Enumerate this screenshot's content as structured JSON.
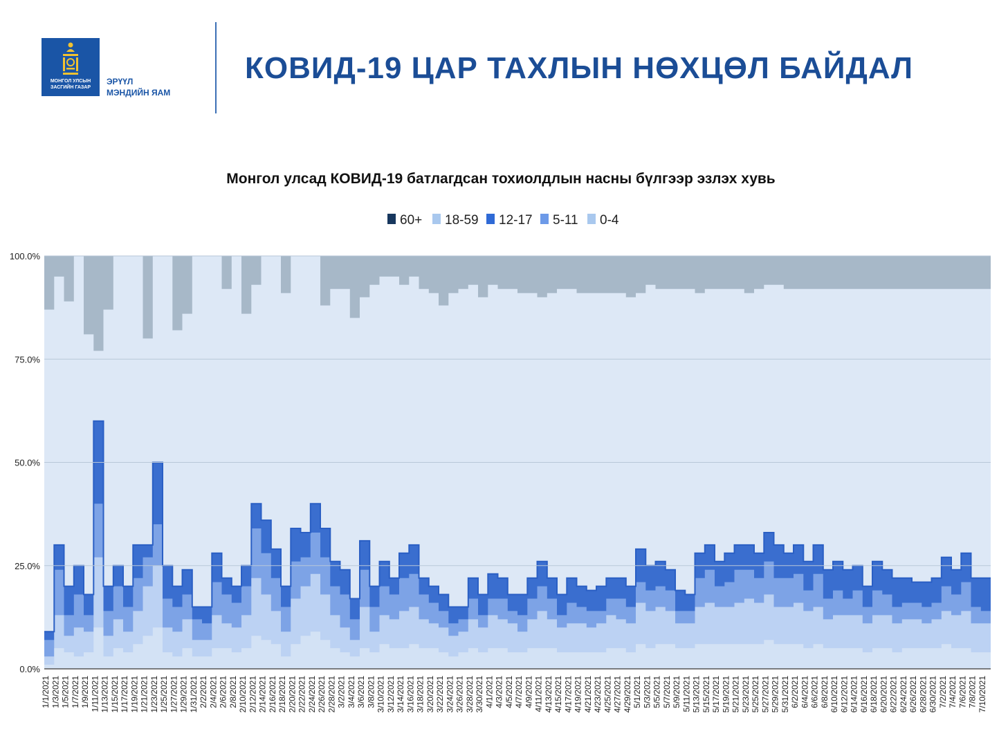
{
  "header": {
    "logo_line1": "МОНГОЛ УЛСЫН",
    "logo_line2": "ЗАСГИЙН ГАЗАР",
    "ministry_line1": "ЭРҮҮЛ",
    "ministry_line2": "МЭНДИЙН ЯАМ",
    "title": "КОВИД-19 ЦАР ТАХЛЫН НӨХЦӨЛ БАЙДАЛ"
  },
  "colors": {
    "brand_blue": "#1a55a6",
    "title_blue": "#1b4d96",
    "plot_bg": "#dfe9f5",
    "series_60plus": "#a7b8c8",
    "series_18_59": "#dde8f6",
    "series_12_17": "#3a6ecf",
    "series_5_11": "#7da3e6",
    "series_0_4": "#bcd2f3"
  },
  "chart_data": {
    "type": "area",
    "stacked": true,
    "percent": true,
    "title": "Монгол улсад КОВИД-19 батлагдсан тохиолдлын насны бүлгээр эзлэх хувь",
    "legend": [
      "60+",
      "18-59",
      "12-17",
      "5-11",
      "0-4"
    ],
    "legend_position": "top",
    "ylim": [
      0,
      100
    ],
    "y_ticks": [
      "0.0%",
      "25.0%",
      "50.0%",
      "75.0%",
      "100.0%"
    ],
    "grid": true,
    "x_start": "2021-01-01",
    "x_end": "2021-07-11",
    "x_ticks": [
      "1/1/2021",
      "1/3/2021",
      "1/5/2021",
      "1/7/2021",
      "1/9/2021",
      "1/11/2021",
      "1/13/2021",
      "1/15/2021",
      "1/17/2021",
      "1/19/2021",
      "1/21/2021",
      "1/23/2021",
      "1/25/2021",
      "1/27/2021",
      "1/29/2021",
      "1/31/2021",
      "2/2/2021",
      "2/4/2021",
      "2/6/2021",
      "2/8/2021",
      "2/10/2021",
      "2/12/2021",
      "2/14/2021",
      "2/16/2021",
      "2/18/2021",
      "2/20/2021",
      "2/22/2021",
      "2/24/2021",
      "2/26/2021",
      "2/28/2021",
      "3/2/2021",
      "3/4/2021",
      "3/6/2021",
      "3/8/2021",
      "3/10/2021",
      "3/12/2021",
      "3/14/2021",
      "3/16/2021",
      "3/18/2021",
      "3/20/2021",
      "3/22/2021",
      "3/24/2021",
      "3/26/2021",
      "3/28/2021",
      "3/30/2021",
      "4/1/2021",
      "4/3/2021",
      "4/5/2021",
      "4/7/2021",
      "4/9/2021",
      "4/11/2021",
      "4/13/2021",
      "4/15/2021",
      "4/17/2021",
      "4/19/2021",
      "4/21/2021",
      "4/23/2021",
      "4/25/2021",
      "4/27/2021",
      "4/29/2021",
      "5/1/2021",
      "5/3/2021",
      "5/5/2021",
      "5/7/2021",
      "5/9/2021",
      "5/11/2021",
      "5/13/2021",
      "5/15/2021",
      "5/17/2021",
      "5/19/2021",
      "5/21/2021",
      "5/23/2021",
      "5/25/2021",
      "5/27/2021",
      "5/29/2021",
      "5/31/2021",
      "6/2/2021",
      "6/4/2021",
      "6/6/2021",
      "6/8/2021",
      "6/10/2021",
      "6/12/2021",
      "6/14/2021",
      "6/16/2021",
      "6/18/2021",
      "6/20/2021",
      "6/22/2021",
      "6/24/2021",
      "6/26/2021",
      "6/28/2021",
      "6/30/2021",
      "7/2/2021",
      "7/4/2021",
      "7/6/2021",
      "7/8/2021",
      "7/10/2021"
    ],
    "x_sample_dates": [
      "1/1/2021",
      "1/3/2021",
      "1/5/2021",
      "1/7/2021",
      "1/9/2021",
      "1/11/2021",
      "1/13/2021",
      "1/15/2021",
      "1/17/2021",
      "1/19/2021",
      "1/21/2021",
      "1/23/2021",
      "1/25/2021",
      "1/27/2021",
      "1/29/2021",
      "1/31/2021",
      "2/2/2021",
      "2/4/2021",
      "2/6/2021",
      "2/8/2021",
      "2/10/2021",
      "2/12/2021",
      "2/14/2021",
      "2/16/2021",
      "2/18/2021",
      "2/20/2021",
      "2/22/2021",
      "2/24/2021",
      "2/26/2021",
      "2/28/2021",
      "3/2/2021",
      "3/4/2021",
      "3/6/2021",
      "3/8/2021",
      "3/10/2021",
      "3/12/2021",
      "3/14/2021",
      "3/16/2021",
      "3/18/2021",
      "3/20/2021",
      "3/22/2021",
      "3/24/2021",
      "3/26/2021",
      "3/28/2021",
      "3/30/2021",
      "4/1/2021",
      "4/3/2021",
      "4/5/2021",
      "4/7/2021",
      "4/9/2021",
      "4/11/2021",
      "4/13/2021",
      "4/15/2021",
      "4/17/2021",
      "4/19/2021",
      "4/21/2021",
      "4/23/2021",
      "4/25/2021",
      "4/27/2021",
      "4/29/2021",
      "5/1/2021",
      "5/3/2021",
      "5/5/2021",
      "5/7/2021",
      "5/9/2021",
      "5/11/2021",
      "5/13/2021",
      "5/15/2021",
      "5/17/2021",
      "5/19/2021",
      "5/21/2021",
      "5/23/2021",
      "5/25/2021",
      "5/27/2021",
      "5/29/2021",
      "5/31/2021",
      "6/2/2021",
      "6/4/2021",
      "6/6/2021",
      "6/8/2021",
      "6/10/2021",
      "6/12/2021",
      "6/14/2021",
      "6/16/2021",
      "6/18/2021",
      "6/20/2021",
      "6/22/2021",
      "6/24/2021",
      "6/26/2021",
      "6/28/2021",
      "6/30/2021",
      "7/2/2021",
      "7/4/2021",
      "7/6/2021",
      "7/8/2021",
      "7/10/2021"
    ],
    "cumulative_below_60plus": [
      87,
      95,
      89,
      100,
      81,
      77,
      87,
      100,
      100,
      100,
      80,
      100,
      100,
      82,
      86,
      100,
      100,
      100,
      92,
      100,
      86,
      93,
      100,
      100,
      91,
      100,
      100,
      100,
      88,
      92,
      92,
      85,
      90,
      93,
      95,
      95,
      93,
      95,
      92,
      91,
      88,
      91,
      92,
      93,
      90,
      93,
      92,
      92,
      91,
      91,
      90,
      91,
      92,
      92,
      91,
      91,
      91,
      91,
      91,
      90,
      91,
      93,
      92,
      92,
      92,
      92,
      91,
      92,
      92,
      92,
      92,
      91,
      92,
      93,
      93,
      92,
      92,
      92,
      92,
      92,
      92,
      92,
      92,
      92,
      92,
      92,
      92,
      92,
      92,
      92,
      92,
      92,
      92,
      92,
      92,
      92
    ],
    "cumulative_below_18_59": [
      9,
      30,
      20,
      25,
      18,
      60,
      20,
      25,
      20,
      30,
      30,
      50,
      25,
      20,
      24,
      15,
      15,
      28,
      22,
      20,
      25,
      40,
      36,
      29,
      20,
      34,
      33,
      40,
      34,
      26,
      24,
      17,
      31,
      20,
      26,
      22,
      28,
      30,
      22,
      20,
      18,
      15,
      15,
      22,
      18,
      23,
      22,
      18,
      18,
      22,
      26,
      22,
      18,
      22,
      20,
      19,
      20,
      22,
      22,
      20,
      29,
      25,
      26,
      24,
      19,
      18,
      28,
      30,
      26,
      28,
      30,
      30,
      28,
      33,
      30,
      28,
      30,
      26,
      30,
      24,
      26,
      24,
      25,
      20,
      26,
      24,
      22,
      22,
      21,
      21,
      22,
      27,
      24,
      28,
      22,
      22
    ],
    "cumulative_below_12_17": [
      7,
      24,
      13,
      18,
      13,
      40,
      14,
      20,
      15,
      22,
      27,
      35,
      17,
      15,
      18,
      12,
      11,
      21,
      18,
      16,
      20,
      34,
      28,
      22,
      15,
      26,
      27,
      33,
      27,
      20,
      18,
      12,
      24,
      15,
      20,
      18,
      22,
      23,
      18,
      16,
      14,
      11,
      12,
      17,
      13,
      17,
      17,
      14,
      13,
      17,
      20,
      17,
      13,
      16,
      15,
      14,
      14,
      17,
      17,
      15,
      21,
      19,
      20,
      19,
      14,
      14,
      22,
      24,
      20,
      21,
      24,
      24,
      22,
      26,
      22,
      22,
      23,
      19,
      23,
      17,
      19,
      17,
      19,
      15,
      19,
      18,
      15,
      16,
      16,
      15,
      16,
      20,
      18,
      21,
      15,
      14
    ],
    "cumulative_below_5_11": [
      3,
      13,
      8,
      10,
      9,
      27,
      8,
      12,
      9,
      14,
      20,
      25,
      10,
      9,
      12,
      7,
      7,
      13,
      11,
      10,
      13,
      22,
      18,
      14,
      9,
      17,
      20,
      23,
      18,
      13,
      10,
      7,
      15,
      9,
      13,
      12,
      14,
      15,
      12,
      11,
      10,
      8,
      9,
      12,
      10,
      13,
      12,
      11,
      9,
      12,
      14,
      12,
      10,
      11,
      11,
      10,
      11,
      13,
      12,
      11,
      16,
      14,
      15,
      14,
      11,
      11,
      15,
      16,
      15,
      15,
      16,
      17,
      16,
      18,
      15,
      15,
      16,
      14,
      15,
      12,
      13,
      13,
      13,
      11,
      13,
      13,
      11,
      12,
      12,
      11,
      12,
      14,
      13,
      14,
      11,
      11
    ],
    "cumulative_below_0_4": [
      1,
      5,
      4,
      3,
      4,
      10,
      3,
      5,
      4,
      6,
      8,
      10,
      4,
      3,
      5,
      3,
      3,
      5,
      5,
      4,
      5,
      8,
      7,
      6,
      3,
      6,
      8,
      9,
      7,
      5,
      4,
      3,
      5,
      4,
      6,
      5,
      5,
      6,
      5,
      5,
      4,
      3,
      4,
      5,
      4,
      5,
      5,
      4,
      4,
      5,
      5,
      5,
      4,
      4,
      4,
      4,
      4,
      5,
      5,
      4,
      6,
      5,
      6,
      6,
      5,
      5,
      6,
      6,
      6,
      6,
      6,
      6,
      6,
      7,
      6,
      6,
      6,
      5,
      6,
      5,
      5,
      5,
      5,
      4,
      5,
      5,
      4,
      5,
      5,
      5,
      5,
      6,
      5,
      5,
      4,
      4
    ]
  }
}
